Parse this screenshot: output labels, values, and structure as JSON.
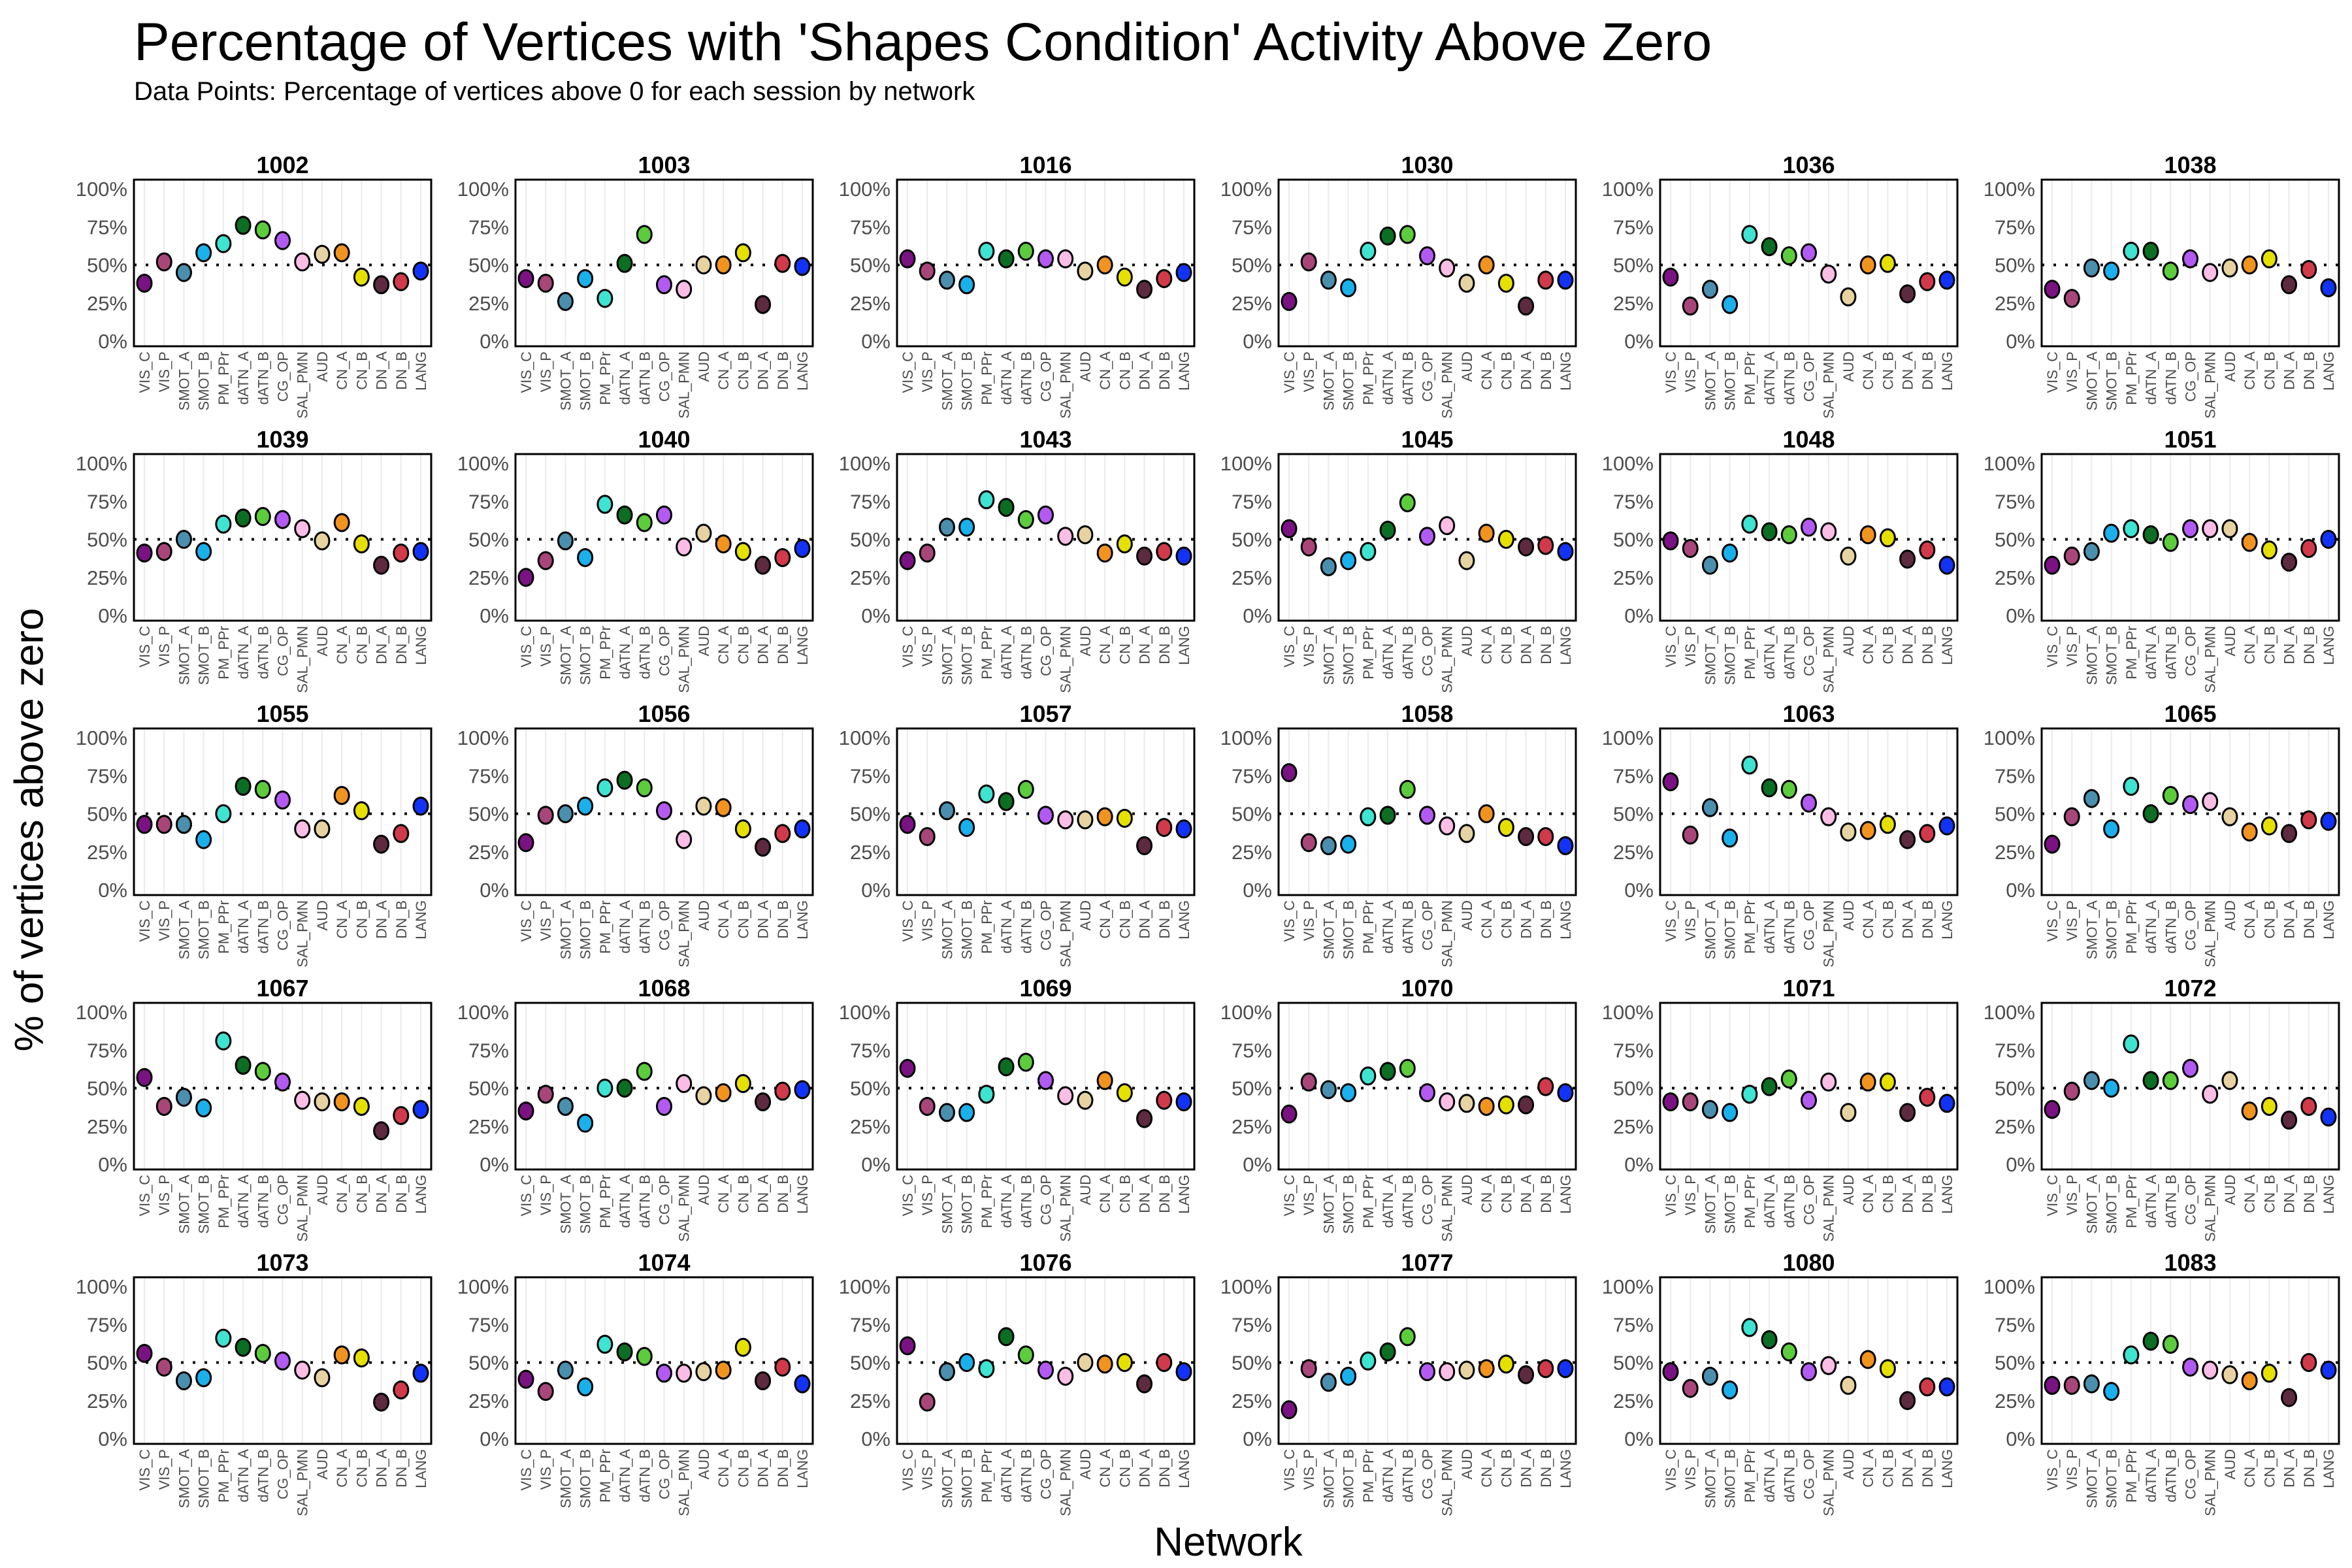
{
  "chart_data": {
    "type": "scatter",
    "title": "Percentage of Vertices with 'Shapes Condition' Activity Above Zero",
    "subtitle": "Data Points: Percentage of vertices above 0 for each session by network",
    "xlabel": "Network",
    "ylabel": "% of vertices above zero",
    "ylim": [
      0,
      100
    ],
    "yticks": [
      "0%",
      "25%",
      "50%",
      "75%",
      "100%"
    ],
    "reference_line": 50,
    "networks": [
      "VIS_C",
      "VIS_P",
      "SMOT_A",
      "SMOT_B",
      "PM_PPr",
      "dATN_A",
      "dATN_B",
      "CG_OP",
      "SAL_PMN",
      "AUD",
      "CN_A",
      "CN_B",
      "DN_A",
      "DN_B",
      "LANG"
    ],
    "colors": [
      "#7b1283",
      "#a8467a",
      "#4a8fad",
      "#1ab0ec",
      "#3ee3d1",
      "#0b6e23",
      "#5ccc3c",
      "#b35af2",
      "#f9bde6",
      "#e6d3a1",
      "#f0931f",
      "#e6e000",
      "#5e2a40",
      "#d13a4a",
      "#1233f5"
    ],
    "panels": [
      {
        "id": "1002",
        "means": [
          38,
          52,
          45,
          58,
          64,
          76,
          73,
          66,
          52,
          57,
          58,
          42,
          37,
          39,
          46
        ]
      },
      {
        "id": "1003",
        "means": [
          41,
          38,
          26,
          41,
          28,
          51,
          70,
          37,
          34,
          50,
          50,
          58,
          24,
          51,
          49
        ]
      },
      {
        "id": "1016",
        "means": [
          54,
          46,
          40,
          37,
          59,
          54,
          59,
          54,
          54,
          46,
          50,
          42,
          34,
          41,
          45
        ]
      },
      {
        "id": "1030",
        "means": [
          26,
          52,
          40,
          35,
          59,
          69,
          70,
          56,
          48,
          38,
          50,
          38,
          23,
          40,
          40
        ]
      },
      {
        "id": "1036",
        "means": [
          42,
          23,
          34,
          24,
          70,
          62,
          56,
          58,
          44,
          29,
          50,
          51,
          31,
          39,
          40
        ]
      },
      {
        "id": "1038",
        "means": [
          34,
          28,
          48,
          46,
          59,
          59,
          46,
          54,
          45,
          48,
          50,
          54,
          37,
          47,
          35
        ]
      },
      {
        "id": "1039",
        "means": [
          41,
          42,
          50,
          42,
          60,
          64,
          65,
          63,
          57,
          49,
          61,
          47,
          33,
          41,
          42
        ]
      },
      {
        "id": "1040",
        "means": [
          25,
          36,
          49,
          38,
          73,
          66,
          61,
          66,
          45,
          54,
          47,
          42,
          33,
          38,
          44
        ]
      },
      {
        "id": "1043",
        "means": [
          36,
          41,
          58,
          58,
          76,
          71,
          63,
          66,
          52,
          53,
          41,
          47,
          39,
          42,
          39
        ]
      },
      {
        "id": "1045",
        "means": [
          57,
          45,
          32,
          36,
          42,
          56,
          74,
          52,
          59,
          36,
          54,
          50,
          45,
          46,
          42
        ]
      },
      {
        "id": "1048",
        "means": [
          49,
          44,
          33,
          41,
          60,
          55,
          53,
          58,
          55,
          39,
          53,
          51,
          37,
          43,
          33
        ]
      },
      {
        "id": "1051",
        "means": [
          33,
          39,
          42,
          54,
          57,
          53,
          48,
          57,
          57,
          57,
          48,
          43,
          35,
          44,
          50
        ]
      },
      {
        "id": "1055",
        "means": [
          43,
          43,
          43,
          33,
          50,
          68,
          66,
          59,
          40,
          40,
          62,
          52,
          30,
          37,
          55
        ]
      },
      {
        "id": "1056",
        "means": [
          31,
          49,
          50,
          55,
          67,
          72,
          67,
          52,
          33,
          55,
          54,
          40,
          28,
          37,
          40
        ]
      },
      {
        "id": "1057",
        "means": [
          43,
          35,
          52,
          41,
          63,
          58,
          66,
          49,
          46,
          46,
          48,
          47,
          29,
          41,
          40
        ]
      },
      {
        "id": "1058",
        "means": [
          77,
          31,
          29,
          30,
          48,
          49,
          66,
          49,
          42,
          37,
          50,
          41,
          35,
          35,
          29
        ]
      },
      {
        "id": "1063",
        "means": [
          71,
          36,
          54,
          34,
          82,
          67,
          66,
          57,
          48,
          38,
          39,
          43,
          33,
          37,
          42
        ]
      },
      {
        "id": "1065",
        "means": [
          30,
          48,
          60,
          40,
          68,
          50,
          62,
          56,
          58,
          48,
          38,
          42,
          37,
          46,
          45
        ]
      },
      {
        "id": "1067",
        "means": [
          57,
          38,
          44,
          37,
          81,
          65,
          61,
          54,
          42,
          41,
          41,
          38,
          22,
          32,
          36
        ]
      },
      {
        "id": "1068",
        "means": [
          35,
          46,
          38,
          27,
          50,
          50,
          61,
          38,
          53,
          45,
          47,
          53,
          41,
          48,
          49
        ]
      },
      {
        "id": "1069",
        "means": [
          63,
          38,
          34,
          34,
          46,
          64,
          67,
          55,
          45,
          42,
          55,
          47,
          30,
          42,
          41
        ]
      },
      {
        "id": "1070",
        "means": [
          33,
          54,
          49,
          47,
          58,
          61,
          63,
          47,
          41,
          40,
          38,
          39,
          39,
          51,
          47
        ]
      },
      {
        "id": "1071",
        "means": [
          41,
          41,
          36,
          34,
          46,
          51,
          56,
          42,
          54,
          34,
          54,
          54,
          34,
          44,
          40
        ]
      },
      {
        "id": "1072",
        "means": [
          36,
          48,
          55,
          50,
          79,
          55,
          55,
          63,
          46,
          55,
          35,
          38,
          29,
          38,
          31
        ]
      },
      {
        "id": "1073",
        "means": [
          56,
          47,
          38,
          40,
          66,
          60,
          56,
          51,
          45,
          40,
          55,
          53,
          24,
          32,
          43
        ]
      },
      {
        "id": "1074",
        "means": [
          39,
          31,
          45,
          34,
          62,
          57,
          54,
          43,
          43,
          44,
          45,
          60,
          38,
          47,
          36
        ]
      },
      {
        "id": "1076",
        "means": [
          61,
          24,
          44,
          50,
          46,
          67,
          55,
          45,
          41,
          50,
          49,
          50,
          36,
          50,
          44
        ]
      },
      {
        "id": "1077",
        "means": [
          19,
          46,
          37,
          41,
          51,
          57,
          67,
          44,
          44,
          45,
          46,
          49,
          42,
          46,
          46
        ]
      },
      {
        "id": "1080",
        "means": [
          44,
          33,
          41,
          32,
          73,
          65,
          57,
          44,
          48,
          35,
          52,
          46,
          25,
          34,
          34
        ]
      },
      {
        "id": "1083",
        "means": [
          35,
          35,
          36,
          31,
          55,
          64,
          62,
          47,
          45,
          42,
          38,
          43,
          27,
          50,
          45
        ]
      }
    ]
  }
}
